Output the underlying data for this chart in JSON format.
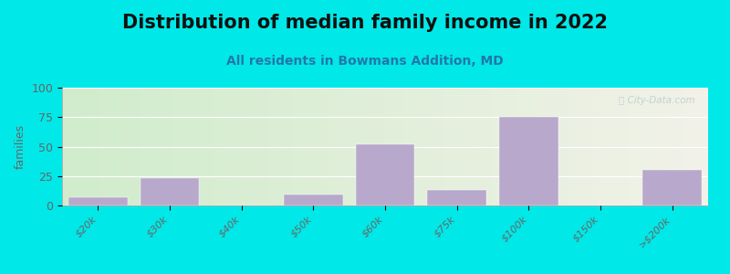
{
  "title": "Distribution of median family income in 2022",
  "subtitle": "All residents in Bowmans Addition, MD",
  "categories": [
    "$20k",
    "$30k",
    "$40k",
    "$50k",
    "$60k",
    "$75k",
    "$100k",
    "$150k",
    ">$200k"
  ],
  "values": [
    7,
    23,
    0,
    9,
    52,
    13,
    75,
    0,
    30
  ],
  "bar_color": "#b8a8cc",
  "bg_outer": "#00e8e8",
  "bg_plot_grad_left": "#d0eccc",
  "bg_plot_grad_right": "#f2f2e8",
  "ylabel": "families",
  "ylim": [
    0,
    100
  ],
  "yticks": [
    0,
    25,
    50,
    75,
    100
  ],
  "watermark": "ⓘ City-Data.com",
  "title_fontsize": 15,
  "subtitle_fontsize": 10,
  "ylabel_fontsize": 9,
  "tick_fontsize": 8,
  "grid_color": "#ffffff",
  "title_color": "#111111",
  "subtitle_color": "#2277aa",
  "tick_color": "#666666",
  "watermark_color": "#bbcccc"
}
